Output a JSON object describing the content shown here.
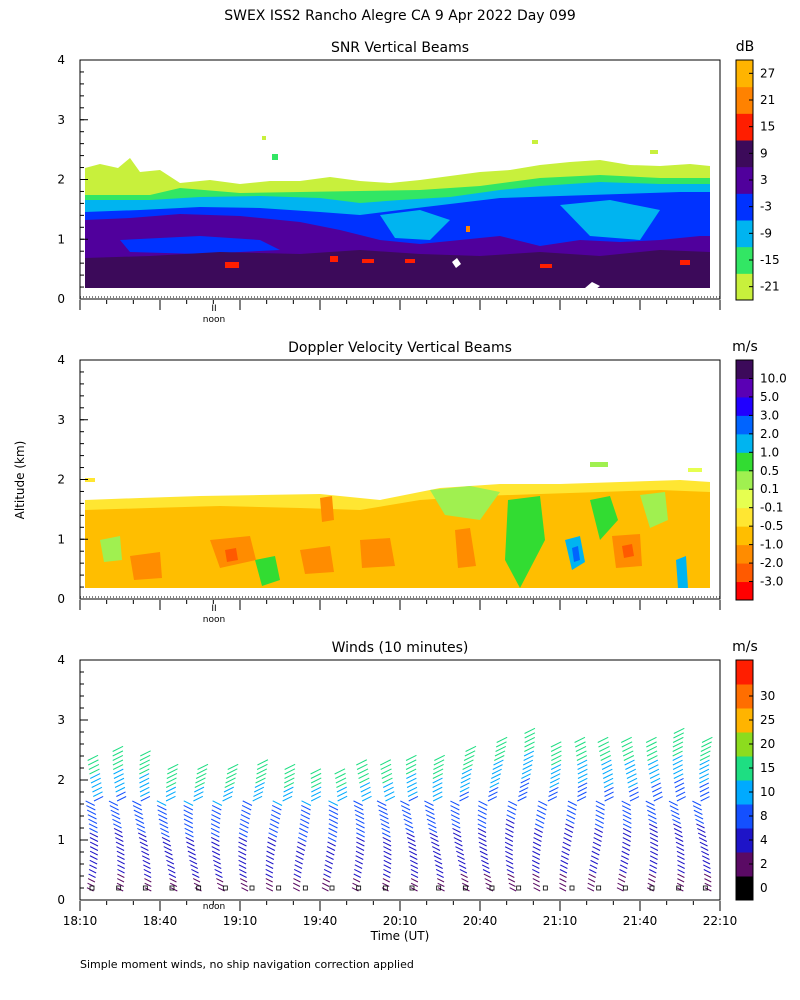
{
  "figure": {
    "title": "SWEX ISS2 Rancho Alegre CA    9 Apr 2022 Day 099",
    "ylabel": "Altitude (km)",
    "xlabel": "Time (UT)",
    "footnote": "Simple moment winds, no ship navigation correction applied",
    "noon_label": "noon"
  },
  "chart_data": [
    {
      "type": "heatmap",
      "title": "SNR Vertical Beams",
      "ylim": [
        0,
        4
      ],
      "yticks": [
        0,
        1,
        2,
        3,
        4
      ],
      "xlim_minutes_utc": [
        1090,
        1330
      ],
      "colorbar": {
        "unit": "dB",
        "colors": [
          "#c8f03c",
          "#32e664",
          "#00b4f0",
          "#0032ff",
          "#50009c",
          "#3c0a5a",
          "#ff1e00",
          "#ff8200",
          "#ffb400"
        ],
        "labels": [
          "-21",
          "-15",
          "-9",
          "-3",
          "3",
          "9",
          "15",
          "21",
          "27"
        ]
      },
      "layers": [
        {
          "name": "scattered weak echo",
          "altitude_km": [
            1.9,
            2.4
          ],
          "level": -21
        },
        {
          "name": "edge echo",
          "altitude_km": [
            1.6,
            2.0
          ],
          "level": -15
        },
        {
          "name": "upper layer",
          "altitude_km": [
            1.2,
            1.9
          ],
          "level": -3
        },
        {
          "name": "middle layer",
          "altitude_km": [
            0.6,
            1.2
          ],
          "level": 3
        },
        {
          "name": "boundary layer",
          "altitude_km": [
            0.15,
            0.6
          ],
          "level": 9
        }
      ]
    },
    {
      "type": "heatmap",
      "title": "Doppler Velocity Vertical Beams",
      "ylim": [
        0,
        4
      ],
      "yticks": [
        0,
        1,
        2,
        3,
        4
      ],
      "xlim_minutes_utc": [
        1090,
        1330
      ],
      "colorbar": {
        "unit": "m/s",
        "colors": [
          "#ff0000",
          "#ff5a00",
          "#ff8c00",
          "#ffbe00",
          "#ffe632",
          "#e6ff50",
          "#a0f050",
          "#32dc32",
          "#00b4f0",
          "#0064ff",
          "#2000ff",
          "#5a00b4",
          "#3c0a5a"
        ],
        "labels": [
          "-3.0",
          "-2.0",
          "-1.0",
          "-0.5",
          "-0.1",
          "0.1",
          "0.5",
          "1.0",
          "2.0",
          "3.0",
          "5.0",
          "10.0"
        ]
      },
      "layers": [
        {
          "name": "echo top",
          "altitude_km": [
            1.6,
            1.95
          ],
          "level": -0.1
        },
        {
          "name": "main echo",
          "altitude_km": [
            0.15,
            1.6
          ],
          "level": -0.5
        }
      ]
    },
    {
      "type": "scatter",
      "title": "Winds (10 minutes)",
      "ylim": [
        0,
        4
      ],
      "yticks": [
        0,
        1,
        2,
        3,
        4
      ],
      "xlim_minutes_utc": [
        1090,
        1330
      ],
      "xticks": [
        "18:10",
        "18:40",
        "19:10",
        "19:40",
        "20:10",
        "20:40",
        "21:10",
        "21:40",
        "22:10"
      ],
      "colorbar": {
        "unit": "m/s",
        "colors": [
          "#000000",
          "#5a0a64",
          "#1e14c8",
          "#1450ff",
          "#00aaff",
          "#1ede82",
          "#8cdc1e",
          "#ffb400",
          "#ff6e00",
          "#ff1e00"
        ],
        "labels": [
          "0",
          "2",
          "4",
          "8",
          "10",
          "15",
          "20",
          "25",
          "30"
        ]
      },
      "profile_times_utc": [
        "18:10",
        "18:20",
        "18:30",
        "18:40",
        "18:50",
        "19:00",
        "19:10",
        "19:20",
        "19:30",
        "19:40",
        "19:50",
        "20:00",
        "20:10",
        "20:20",
        "20:30",
        "20:40",
        "20:50",
        "21:00",
        "21:10",
        "21:20",
        "21:30",
        "21:40",
        "21:50",
        "22:00"
      ],
      "profile_top_km": [
        2.4,
        2.55,
        2.45,
        2.2,
        2.2,
        2.2,
        2.25,
        2.2,
        2.15,
        2.15,
        2.25,
        2.25,
        2.4,
        2.35,
        2.5,
        2.65,
        2.85,
        2.6,
        2.7,
        2.65,
        2.65,
        2.7,
        2.8,
        2.7
      ]
    }
  ]
}
